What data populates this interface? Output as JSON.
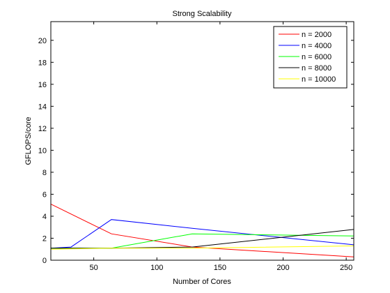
{
  "chart_data": {
    "type": "line",
    "title": "Strong Scalability",
    "xlabel": "Number of Cores",
    "ylabel": "GFLOPS/core",
    "xlim": [
      16,
      256
    ],
    "ylim": [
      0,
      21.7
    ],
    "xticks": [
      50,
      100,
      150,
      200,
      250
    ],
    "yticks": [
      0,
      2,
      4,
      6,
      8,
      10,
      12,
      14,
      16,
      18,
      20
    ],
    "grid": false,
    "legend_position": "top-right",
    "series": [
      {
        "name": "n = 2000",
        "color": "#ff0000",
        "x": [
          16,
          64,
          128,
          256
        ],
        "y": [
          5.1,
          2.4,
          1.2,
          0.3
        ]
      },
      {
        "name": "n = 4000",
        "color": "#0000ff",
        "x": [
          16,
          32,
          64,
          128,
          256
        ],
        "y": [
          1.1,
          1.2,
          3.7,
          2.9,
          1.4
        ]
      },
      {
        "name": "n = 6000",
        "color": "#00ff00",
        "x": [
          16,
          64,
          128,
          256
        ],
        "y": [
          1.1,
          1.1,
          2.4,
          2.2
        ]
      },
      {
        "name": "n = 8000",
        "color": "#000000",
        "x": [
          16,
          32,
          64,
          128,
          256
        ],
        "y": [
          1.1,
          1.1,
          1.1,
          1.2,
          2.8
        ]
      },
      {
        "name": "n = 10000",
        "color": "#ffff00",
        "x": [
          16,
          64,
          128,
          256
        ],
        "y": [
          1.0,
          1.1,
          1.1,
          1.3
        ]
      }
    ]
  }
}
